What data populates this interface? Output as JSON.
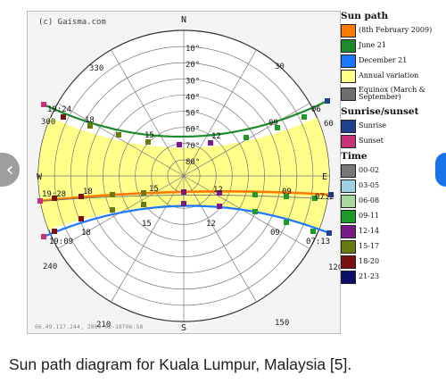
{
  "diagram": {
    "copyright": "(c) Gaisma.com",
    "footer": "66.49.117.244, 2009-02-18T06:58",
    "compass": {
      "n": "N",
      "s": "S",
      "e": "E",
      "w": "W"
    },
    "elevation_labels": [
      "10°",
      "20°",
      "30°",
      "40°",
      "50°",
      "60°",
      "70°",
      "80°"
    ],
    "azimuth_labels": [
      "330",
      "30",
      "300",
      "60",
      "240",
      "120",
      "210",
      "150"
    ],
    "summer_path": {
      "rise_time": "06",
      "set_time": "19:24",
      "hours": [
        "18",
        "15",
        "12",
        "09"
      ]
    },
    "equinox_path": {
      "rise_time": "07:2",
      "set_time": "19:28",
      "hours": [
        "18",
        "15",
        "12",
        "09"
      ]
    },
    "winter_path": {
      "rise_time": "07:13",
      "set_time": "19:09",
      "hours": [
        "18",
        "15",
        "12",
        "09"
      ]
    }
  },
  "legend": {
    "sun_path_title": "Sun path",
    "sun_path_items": [
      {
        "label": "(8th February 2009)",
        "color": "#ff7a00"
      },
      {
        "label": "June 21",
        "color": "#1d8a2c"
      },
      {
        "label": "December 21",
        "color": "#1e78ff"
      },
      {
        "label": "Annual variation",
        "color": "#ffff8a"
      },
      {
        "label": "Equinox (March & September)",
        "color": "#6e6e6e"
      }
    ],
    "sunrise_title": "Sunrise/sunset",
    "sunrise_items": [
      {
        "label": "Sunrise",
        "color": "#1f3f8f"
      },
      {
        "label": "Sunset",
        "color": "#c8327a"
      }
    ],
    "time_title": "Time",
    "time_items": [
      {
        "label": "00-02",
        "color": "#777777"
      },
      {
        "label": "03-05",
        "color": "#9fd2e0"
      },
      {
        "label": "06-08",
        "color": "#a8d8a0"
      },
      {
        "label": "09-11",
        "color": "#1e9a2a"
      },
      {
        "label": "12-14",
        "color": "#7a1a8a"
      },
      {
        "label": "15-17",
        "color": "#6a7a10"
      },
      {
        "label": "18-20",
        "color": "#7a1010"
      },
      {
        "label": "21-23",
        "color": "#0a0f6a"
      }
    ]
  },
  "caption": "Sun path diagram for Kuala Lumpur, Malaysia [5].",
  "nav": {
    "prev_glyph": "‹",
    "next_glyph": ""
  }
}
